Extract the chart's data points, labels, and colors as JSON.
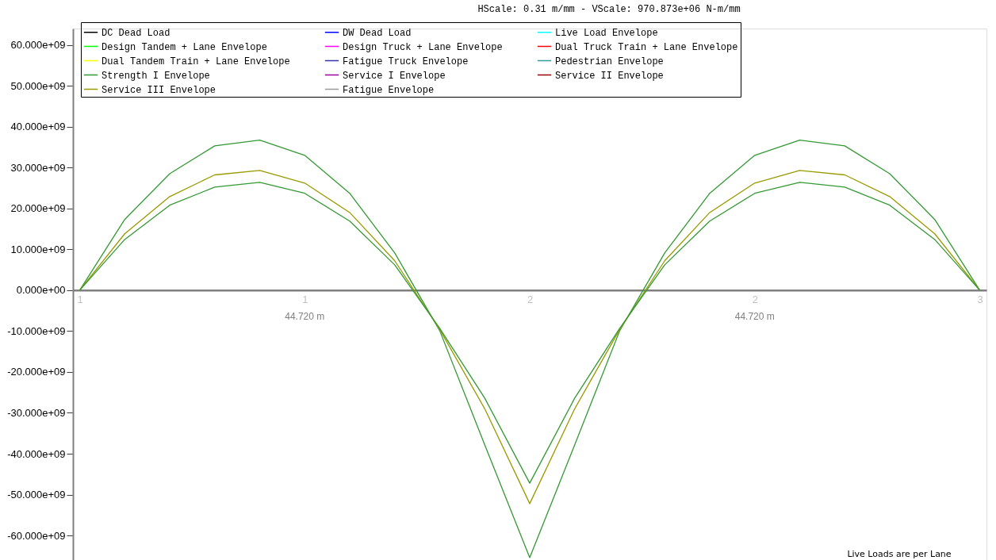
{
  "chart_data": {
    "type": "line",
    "title": "HScale: 0.31 m/mm - VScale: 970.873e+06 N-m/mm",
    "categories": [
      "1",
      null,
      null,
      null,
      null,
      "1",
      null,
      null,
      null,
      null,
      "2",
      null,
      null,
      null,
      null,
      "2",
      null,
      null,
      null,
      null,
      "3"
    ],
    "series": [
      {
        "name": "DC Dead Load",
        "color": "#000000",
        "values": [
          null,
          null,
          null,
          null,
          null,
          null,
          null,
          null,
          null,
          null,
          null,
          null,
          null,
          null,
          null,
          null,
          null,
          null,
          null,
          null,
          null
        ]
      },
      {
        "name": "DW Dead Load",
        "color": "#0000ff",
        "values": [
          null,
          null,
          null,
          null,
          null,
          null,
          null,
          null,
          null,
          null,
          null,
          null,
          null,
          null,
          null,
          null,
          null,
          null,
          null,
          null,
          null
        ]
      },
      {
        "name": "Live Load Envelope",
        "color": "#00ffff",
        "values": [
          null,
          null,
          null,
          null,
          null,
          null,
          null,
          null,
          null,
          null,
          null,
          null,
          null,
          null,
          null,
          null,
          null,
          null,
          null,
          null,
          null
        ]
      },
      {
        "name": "Design Tandem + Lane Envelope",
        "color": "#00ff00",
        "values": [
          null,
          null,
          null,
          null,
          null,
          null,
          null,
          null,
          null,
          null,
          null,
          null,
          null,
          null,
          null,
          null,
          null,
          null,
          null,
          null,
          null
        ]
      },
      {
        "name": "Design Truck + Lane Envelope",
        "color": "#ff00ff",
        "values": [
          null,
          null,
          null,
          null,
          null,
          null,
          null,
          null,
          null,
          null,
          null,
          null,
          null,
          null,
          null,
          null,
          null,
          null,
          null,
          null,
          null
        ]
      },
      {
        "name": "Dual Truck Train + Lane Envelope",
        "color": "#ff0000",
        "values": [
          null,
          null,
          null,
          null,
          null,
          null,
          null,
          null,
          null,
          null,
          null,
          null,
          null,
          null,
          null,
          null,
          null,
          null,
          null,
          null,
          null
        ]
      },
      {
        "name": "Dual Tandem Train + Lane Envelope",
        "color": "#ffff00",
        "values": [
          null,
          null,
          null,
          null,
          null,
          null,
          null,
          null,
          null,
          null,
          null,
          null,
          null,
          null,
          null,
          null,
          null,
          null,
          null,
          null,
          null
        ]
      },
      {
        "name": "Fatigue Truck Envelope",
        "color": "#3333aa",
        "values": [
          null,
          null,
          null,
          null,
          null,
          null,
          null,
          null,
          null,
          null,
          null,
          null,
          null,
          null,
          null,
          null,
          null,
          null,
          null,
          null,
          null
        ]
      },
      {
        "name": "Pedestrian Envelope",
        "color": "#339999",
        "values": [
          null,
          null,
          null,
          null,
          null,
          null,
          null,
          null,
          null,
          null,
          null,
          null,
          null,
          null,
          null,
          null,
          null,
          null,
          null,
          null,
          null
        ]
      },
      {
        "name": "Strength I Envelope",
        "color": "#339933",
        "values": [
          0,
          17300000000.0,
          28500000000.0,
          35300000000.0,
          36700000000.0,
          33000000000.0,
          23700000000.0,
          9100000000.0,
          -9900000000.0,
          -37800000000.0,
          -65400000000.0,
          -37800000000.0,
          -9900000000.0,
          9100000000.0,
          23700000000.0,
          33000000000.0,
          36700000000.0,
          35300000000.0,
          28500000000.0,
          17300000000.0,
          0
        ]
      },
      {
        "name": "Service I Envelope",
        "color": "#990099",
        "values": [
          null,
          null,
          null,
          null,
          null,
          null,
          null,
          null,
          null,
          null,
          null,
          null,
          null,
          null,
          null,
          null,
          null,
          null,
          null,
          null,
          null
        ]
      },
      {
        "name": "Service II Envelope",
        "color": "#990000",
        "values": [
          null,
          null,
          null,
          null,
          null,
          null,
          null,
          null,
          null,
          null,
          null,
          null,
          null,
          null,
          null,
          null,
          null,
          null,
          null,
          null,
          null
        ]
      },
      {
        "name": "Service III Envelope",
        "color": "#999900",
        "values": [
          0,
          13800000000.0,
          22900000000.0,
          28200000000.0,
          29300000000.0,
          26200000000.0,
          19000000000.0,
          7200000000.0,
          -9600000000.0,
          -29000000000.0,
          -52200000000.0,
          -29000000000.0,
          -9600000000.0,
          7200000000.0,
          19000000000.0,
          26200000000.0,
          29300000000.0,
          28200000000.0,
          22900000000.0,
          13800000000.0,
          0
        ]
      },
      {
        "name": "Fatigue Envelope",
        "color": "#999999",
        "values": [
          null,
          null,
          null,
          null,
          null,
          null,
          null,
          null,
          null,
          null,
          null,
          null,
          null,
          null,
          null,
          null,
          null,
          null,
          null,
          null,
          null
        ]
      },
      {
        "color": "#339933",
        "values": [
          0,
          12400000000.0,
          20800000000.0,
          25200000000.0,
          26400000000.0,
          23700000000.0,
          16900000000.0,
          6200000000.0,
          -9300000000.0,
          -26400000000.0,
          -47200000000.0,
          -26400000000.0,
          -9300000000.0,
          6200000000.0,
          16900000000.0,
          23700000000.0,
          26400000000.0,
          25200000000.0,
          20800000000.0,
          12400000000.0,
          0
        ]
      }
    ],
    "ylim": [
      -66000000000.0,
      64000000000.0
    ],
    "yticks": [
      {
        "value": 60000000000.0,
        "label": "60.000e+09"
      },
      {
        "value": 50000000000.0,
        "label": "50.000e+09"
      },
      {
        "value": 40000000000.0,
        "label": "40.000e+09"
      },
      {
        "value": 30000000000.0,
        "label": "30.000e+09"
      },
      {
        "value": 20000000000.0,
        "label": "20.000e+09"
      },
      {
        "value": 10000000000.0,
        "label": "10.000e+09"
      },
      {
        "value": 0,
        "label": "0.000e+00"
      },
      {
        "value": -10000000000.0,
        "label": "-10.000e+09"
      },
      {
        "value": -20000000000.0,
        "label": "-20.000e+09"
      },
      {
        "value": -30000000000.0,
        "label": "-30.000e+09"
      },
      {
        "value": -40000000000.0,
        "label": "-40.000e+09"
      },
      {
        "value": -50000000000.0,
        "label": "-50.000e+09"
      },
      {
        "value": -60000000000.0,
        "label": "-60.000e+09"
      }
    ],
    "annotations": [
      "44.720 m",
      "44.720 m",
      "Live Loads are per Lane"
    ],
    "grid": false,
    "legend": "top left",
    "marker": "none",
    "line_style": "solid"
  }
}
